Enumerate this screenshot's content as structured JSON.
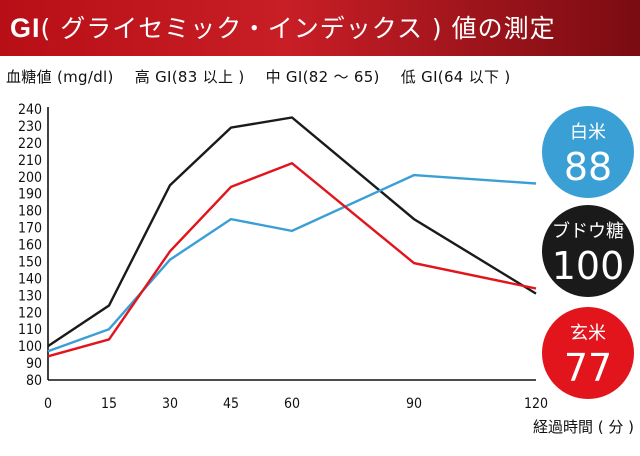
{
  "banner": {
    "gi": "GI",
    "rest": "( グライセミック・インデックス ) 値の測定"
  },
  "legend": {
    "ylabel": "血糖値 (mg/dl)",
    "high": "高 GI(83 以上 )",
    "mid": "中 GI(82 〜 65)",
    "low": "低 GI(64 以下 )"
  },
  "colors": {
    "rice": "#3a9fd5",
    "glucose": "#1a1a1a",
    "brown_rice": "#e2141c",
    "banner": "#b80f17"
  },
  "badges": [
    {
      "label": "白米",
      "value": "88",
      "color": "#3a9fd5"
    },
    {
      "label": "ブドウ糖",
      "value": "100",
      "color": "#1a1a1a"
    },
    {
      "label": "玄米",
      "value": "77",
      "color": "#e2141c"
    }
  ],
  "chart_data": {
    "type": "line",
    "title": "",
    "xlabel": "経過時間 ( 分 )",
    "ylabel": "血糖値 (mg/dl)",
    "x": [
      0,
      15,
      30,
      45,
      60,
      90,
      120
    ],
    "xticks": [
      "0",
      "15",
      "30",
      "45",
      "60",
      "90",
      "120"
    ],
    "ylim": [
      80,
      240
    ],
    "yticks": [
      80,
      90,
      100,
      110,
      120,
      130,
      140,
      150,
      160,
      170,
      180,
      190,
      200,
      210,
      220,
      230,
      240
    ],
    "grid": false,
    "series": [
      {
        "name": "ブドウ糖",
        "color": "#1a1a1a",
        "values": [
          100,
          124,
          195,
          229,
          235,
          175,
          131
        ]
      },
      {
        "name": "白米",
        "color": "#3a9fd5",
        "values": [
          97,
          110,
          151,
          175,
          168,
          201,
          196
        ]
      },
      {
        "name": "玄米",
        "color": "#e2141c",
        "values": [
          94,
          104,
          156,
          194,
          208,
          149,
          134
        ]
      }
    ]
  }
}
